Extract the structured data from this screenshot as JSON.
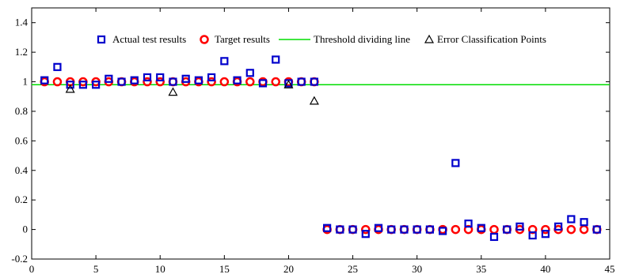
{
  "chart_data": {
    "type": "scatter",
    "title": "",
    "xlabel": "",
    "ylabel": "",
    "xlim": [
      0,
      45
    ],
    "ylim": [
      -0.2,
      1.5
    ],
    "xticks": [
      0,
      5,
      10,
      15,
      20,
      25,
      30,
      35,
      40,
      45
    ],
    "yticks": [
      -0.2,
      0,
      0.2,
      0.4,
      0.6,
      0.8,
      1,
      1.2,
      1.4
    ],
    "xtick_labels": [
      "0",
      "5",
      "10",
      "15",
      "20",
      "25",
      "30",
      "35",
      "40",
      "45"
    ],
    "ytick_labels": [
      "-0.2",
      "0",
      "0.2",
      "0.4",
      "0.6",
      "0.8",
      "1",
      "1.2",
      "1.4"
    ],
    "grid": false,
    "legend_position": "top-center",
    "threshold": 0.98,
    "series": [
      {
        "name": "Actual test results",
        "marker": "square",
        "color": "#0000cc",
        "x": [
          1,
          2,
          3,
          4,
          5,
          6,
          7,
          8,
          9,
          10,
          11,
          12,
          13,
          14,
          15,
          16,
          17,
          18,
          19,
          20,
          21,
          22,
          23,
          24,
          25,
          26,
          27,
          28,
          29,
          30,
          31,
          32,
          33,
          34,
          35,
          36,
          37,
          38,
          39,
          40,
          41,
          42,
          43,
          44
        ],
        "y": [
          1.01,
          1.1,
          0.98,
          0.98,
          0.98,
          1.02,
          1.0,
          1.01,
          1.03,
          1.03,
          1.0,
          1.02,
          1.01,
          1.03,
          1.14,
          1.01,
          1.06,
          0.99,
          1.15,
          0.99,
          1.0,
          1.0,
          0.01,
          0.0,
          0.0,
          -0.03,
          0.01,
          0.0,
          0.0,
          0.0,
          0.0,
          -0.01,
          0.45,
          0.04,
          0.01,
          -0.05,
          0.0,
          0.02,
          -0.04,
          -0.03,
          0.02,
          0.07,
          0.05,
          0.0
        ]
      },
      {
        "name": "Target results",
        "marker": "circle",
        "color": "#ff0000",
        "x": [
          1,
          2,
          3,
          4,
          5,
          6,
          7,
          8,
          9,
          10,
          11,
          12,
          13,
          14,
          15,
          16,
          17,
          18,
          19,
          20,
          21,
          22,
          23,
          24,
          25,
          26,
          27,
          28,
          29,
          30,
          31,
          32,
          33,
          34,
          35,
          36,
          37,
          38,
          39,
          40,
          41,
          42,
          43,
          44
        ],
        "y": [
          1,
          1,
          1,
          1,
          1,
          1,
          1,
          1,
          1,
          1,
          1,
          1,
          1,
          1,
          1,
          1,
          1,
          1,
          1,
          1,
          1,
          1,
          0,
          0,
          0,
          0,
          0,
          0,
          0,
          0,
          0,
          0,
          0,
          0,
          0,
          0,
          0,
          0,
          0,
          0,
          0,
          0,
          0,
          0
        ]
      },
      {
        "name": "Threshold dividing line",
        "marker": "line",
        "color": "#00dd00",
        "x": [
          0,
          45
        ],
        "y": [
          0.98,
          0.98
        ]
      },
      {
        "name": "Error Classification Points",
        "marker": "triangle",
        "color": "#000000",
        "x": [
          3,
          11,
          20,
          22
        ],
        "y": [
          0.95,
          0.93,
          0.98,
          0.87
        ]
      }
    ]
  }
}
